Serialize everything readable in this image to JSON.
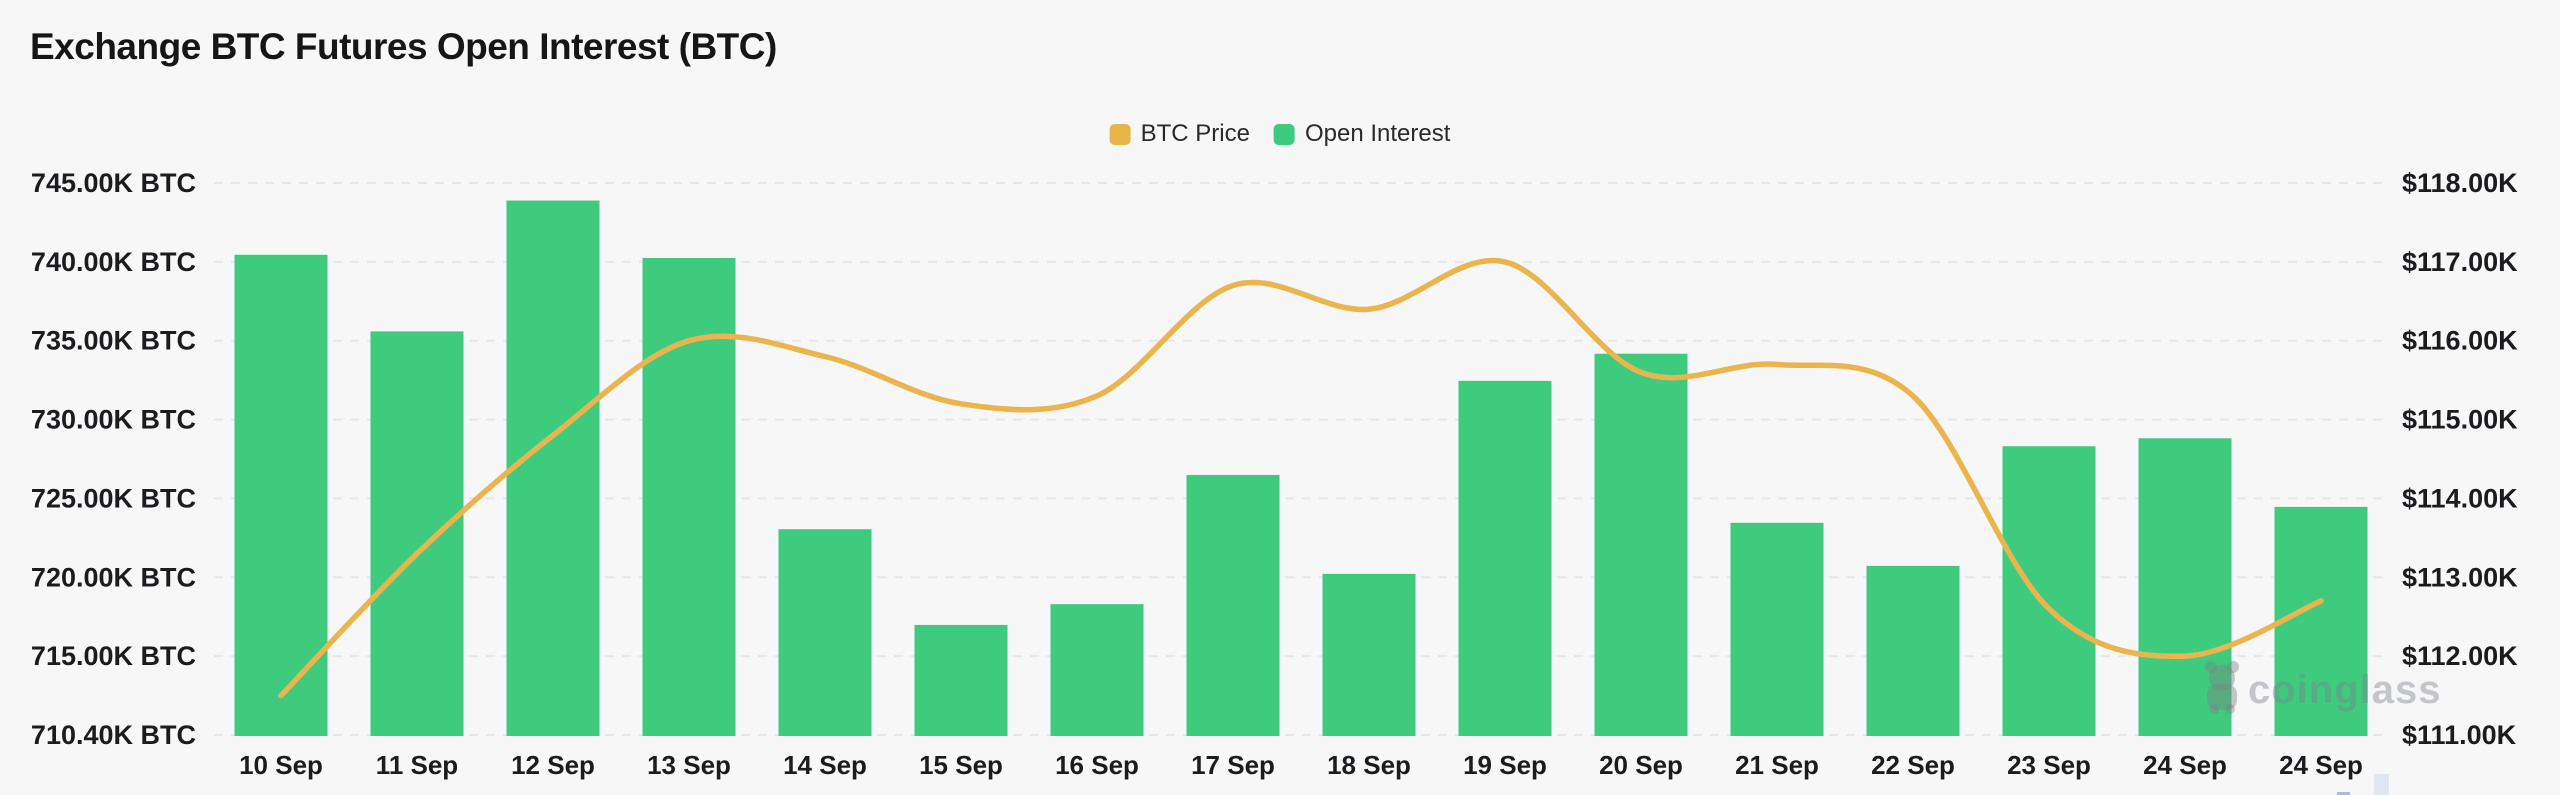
{
  "header": {
    "title": "Exchange BTC Futures Open Interest (BTC)"
  },
  "legend": [
    {
      "label": "BTC Price",
      "color": "#e9b54a",
      "series": "line"
    },
    {
      "label": "Open Interest",
      "color": "#3ecb7e",
      "series": "bar"
    }
  ],
  "watermark": {
    "text": "coinglass",
    "icon": "bear-logo",
    "color": "rgba(125,129,134,0.42)"
  },
  "colors": {
    "background": "#f7f7f8",
    "bar": "#3ecb7e",
    "line": "#eab44e",
    "grid": "#e7e7ea",
    "axis_text": "#1c1c1e",
    "scroll_corner": "#e2e6f3",
    "scroll_thumb": "#a9bce6"
  },
  "chart_data": {
    "type": "bar",
    "title": "Exchange BTC Futures Open Interest (BTC)",
    "categories": [
      "10 Sep",
      "11 Sep",
      "12 Sep",
      "13 Sep",
      "14 Sep",
      "15 Sep",
      "16 Sep",
      "17 Sep",
      "18 Sep",
      "19 Sep",
      "20 Sep",
      "21 Sep",
      "22 Sep",
      "23 Sep",
      "24 Sep",
      "24 Sep"
    ],
    "series": [
      {
        "name": "Open Interest",
        "type": "bar",
        "axis": "left",
        "unit": "K BTC",
        "color": "#3ecb7e",
        "values": [
          740.5,
          735.7,
          743.9,
          740.3,
          723.3,
          717.3,
          718.6,
          726.7,
          720.5,
          732.6,
          734.3,
          723.7,
          721.0,
          728.5,
          729.0,
          724.7
        ]
      },
      {
        "name": "BTC Price",
        "type": "line",
        "axis": "right",
        "unit": "$K",
        "color": "#eab44e",
        "smooth": true,
        "values": [
          111.5,
          113.3,
          114.8,
          116.0,
          115.8,
          115.2,
          115.3,
          116.7,
          116.4,
          117.0,
          115.6,
          115.7,
          115.3,
          112.6,
          112.0,
          112.7
        ]
      }
    ],
    "left_axis": {
      "min": 710.4,
      "max": 745.0,
      "unit": "K BTC",
      "tick_labels": [
        "745.00K BTC",
        "740.00K BTC",
        "735.00K BTC",
        "730.00K BTC",
        "725.00K BTC",
        "720.00K BTC",
        "715.00K BTC",
        "710.40K BTC"
      ]
    },
    "right_axis": {
      "min": 111.0,
      "max": 118.0,
      "unit": "$K",
      "tick_labels": [
        "$118.00K",
        "$117.00K",
        "$116.00K",
        "$115.00K",
        "$114.00K",
        "$113.00K",
        "$112.00K",
        "$111.00K"
      ]
    },
    "grid": {
      "horizontal": true,
      "vertical": false,
      "style": "dashed"
    },
    "legend_position": "top-center"
  }
}
